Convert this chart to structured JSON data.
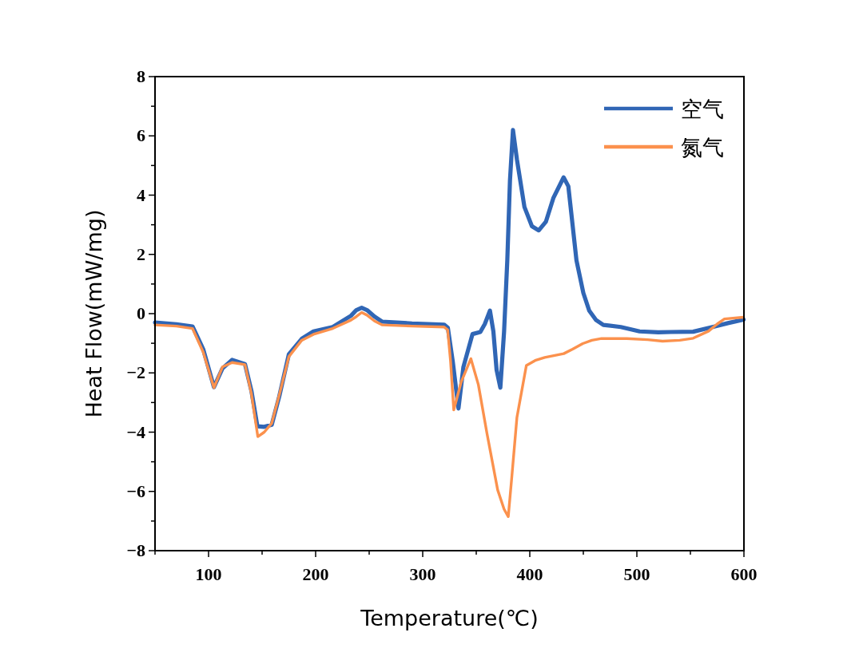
{
  "chart_data": {
    "type": "line",
    "xlabel": "Temperature(℃)",
    "ylabel": "Heat Flow(mW/mg)",
    "xlim": [
      50,
      600
    ],
    "ylim": [
      -8,
      8
    ],
    "xticks": [
      {
        "value": 50,
        "label": null
      },
      100,
      {
        "value": 150,
        "label": null
      },
      200,
      {
        "value": 250,
        "label": null
      },
      300,
      {
        "value": 350,
        "label": null
      },
      400,
      {
        "value": 450,
        "label": null
      },
      500,
      {
        "value": 550,
        "label": null
      },
      600
    ],
    "yticks": [
      {
        "value": -8,
        "label": "−8"
      },
      {
        "value": -7,
        "label": null
      },
      {
        "value": -6,
        "label": "−6"
      },
      {
        "value": -5,
        "label": null
      },
      {
        "value": -4,
        "label": "−4"
      },
      {
        "value": -3,
        "label": null
      },
      {
        "value": -2,
        "label": "−2"
      },
      {
        "value": -1,
        "label": null
      },
      0,
      {
        "value": 1,
        "label": null
      },
      2,
      {
        "value": 3,
        "label": null
      },
      4,
      {
        "value": 5,
        "label": null
      },
      6,
      {
        "value": 7,
        "label": null
      },
      8
    ],
    "grid": false,
    "legend": "top right",
    "marker": "none",
    "line_style": "solid",
    "series": [
      {
        "name": "空气",
        "color": "#3066b5",
        "x": [
          50,
          70,
          85,
          95,
          105,
          113,
          122,
          134,
          140,
          145.6,
          152,
          159,
          166,
          175,
          187,
          198,
          216,
          233,
          238,
          243,
          248,
          255,
          262,
          290,
          320,
          323.5,
          328,
          333.4,
          338,
          346.5,
          353.8,
          358,
          362.8,
          366,
          369,
          372.5,
          376,
          379,
          381.5,
          384.3,
          388,
          395,
          402,
          408.4,
          415,
          422,
          431.6,
          436,
          443.6,
          450,
          455.5,
          462,
          468.7,
          485,
          502.6,
          520,
          531.8,
          552.6,
          573,
          585,
          599.7
        ],
        "values": [
          -0.3,
          -0.36,
          -0.43,
          -1.2,
          -2.48,
          -1.85,
          -1.56,
          -1.7,
          -2.6,
          -3.8,
          -3.82,
          -3.75,
          -2.8,
          -1.37,
          -0.85,
          -0.6,
          -0.45,
          -0.07,
          0.12,
          0.2,
          0.12,
          -0.1,
          -0.27,
          -0.33,
          -0.37,
          -0.48,
          -1.6,
          -3.2,
          -1.8,
          -0.69,
          -0.62,
          -0.35,
          0.1,
          -0.6,
          -1.9,
          -2.5,
          -0.6,
          1.8,
          4.5,
          6.2,
          5.2,
          3.6,
          2.95,
          2.81,
          3.1,
          3.9,
          4.6,
          4.3,
          1.8,
          0.7,
          0.1,
          -0.22,
          -0.38,
          -0.45,
          -0.6,
          -0.63,
          -0.62,
          -0.61,
          -0.43,
          -0.32,
          -0.2
        ]
      },
      {
        "name": "氮气",
        "color": "#fb914d",
        "x": [
          50,
          70,
          85,
          95,
          105,
          113,
          122,
          134,
          140,
          146,
          152,
          159,
          166,
          175,
          187,
          198,
          216,
          233,
          238,
          243,
          248,
          255,
          262,
          290,
          320,
          323.3,
          326,
          329,
          336,
          345,
          352,
          360,
          370,
          376,
          379.9,
          383,
          388,
          396.8,
          405,
          414,
          431.7,
          440,
          449.5,
          458,
          467,
          490.7,
          510,
          524,
          540,
          552.6,
          567,
          575,
          581.8,
          599.7
        ],
        "values": [
          -0.38,
          -0.42,
          -0.5,
          -1.3,
          -2.5,
          -1.8,
          -1.65,
          -1.72,
          -2.7,
          -4.15,
          -4.0,
          -3.7,
          -2.75,
          -1.45,
          -0.9,
          -0.7,
          -0.5,
          -0.22,
          -0.1,
          0.04,
          -0.05,
          -0.25,
          -0.38,
          -0.42,
          -0.45,
          -0.55,
          -1.6,
          -3.25,
          -2.3,
          -1.52,
          -2.4,
          -4.04,
          -5.95,
          -6.6,
          -6.85,
          -5.6,
          -3.5,
          -1.75,
          -1.58,
          -1.48,
          -1.35,
          -1.2,
          -1.01,
          -0.9,
          -0.84,
          -0.84,
          -0.88,
          -0.93,
          -0.9,
          -0.83,
          -0.59,
          -0.35,
          -0.18,
          -0.12
        ]
      }
    ]
  }
}
